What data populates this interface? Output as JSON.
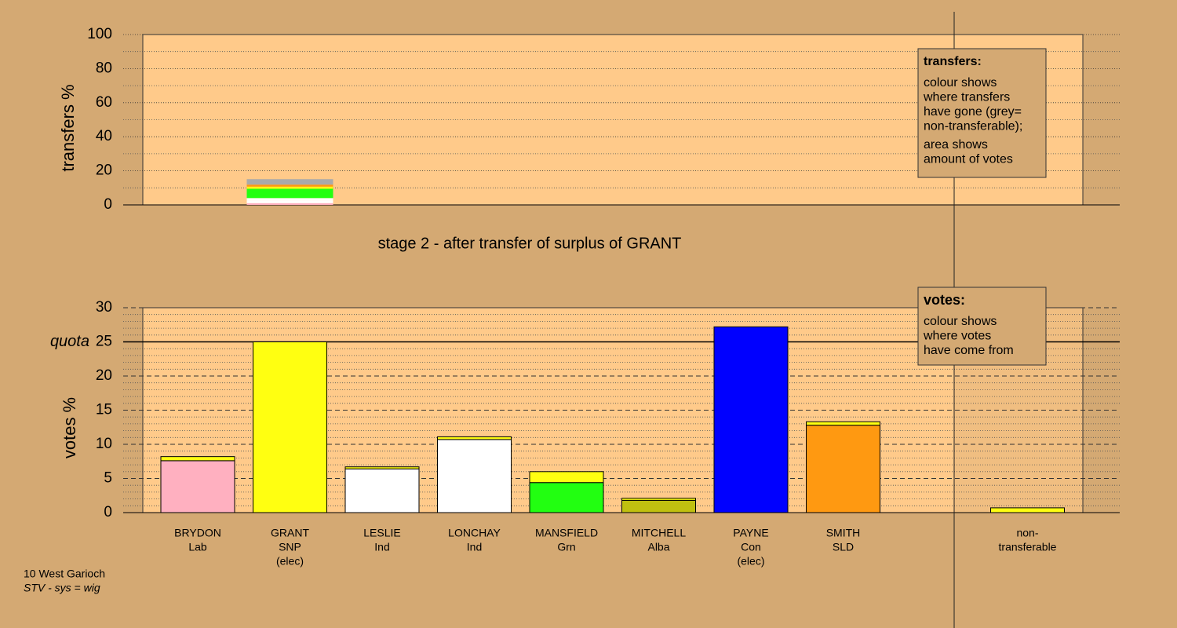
{
  "chart_data": [
    {
      "type": "stacked-bar",
      "ylabel": "transfers %",
      "ylim": [
        0,
        100
      ],
      "yticks": [
        0,
        20,
        40,
        60,
        80,
        100
      ],
      "minor_yticks": [
        10,
        30,
        50,
        70,
        90
      ],
      "segments": [
        {
          "color": "#ffb0c0",
          "value": 1.0
        },
        {
          "color": "#ffffff",
          "value": 1.5
        },
        {
          "color": "#ffffff",
          "value": 1.5
        },
        {
          "color": "#22ff11",
          "value": 5.5
        },
        {
          "color": "#ffff11",
          "value": 1.2
        },
        {
          "color": "#ff9911",
          "value": 1.2
        },
        {
          "color": "#aaaaaa",
          "value": 3.2
        }
      ],
      "legend": {
        "title": "transfers:",
        "lines": [
          "colour shows",
          "where transfers",
          "have gone (grey=",
          "non-transferable);"
        ],
        "lines2": [
          "area shows",
          "amount of votes"
        ]
      }
    },
    {
      "type": "stacked-bar",
      "title": "stage 2 - after transfer of surplus of GRANT",
      "ylabel": "votes %",
      "ylim": [
        0,
        30
      ],
      "yticks": [
        0,
        5,
        10,
        15,
        20,
        25,
        30
      ],
      "minor_yticks": [
        1,
        2,
        3,
        4,
        6,
        7,
        8,
        9,
        11,
        12,
        13,
        14,
        16,
        17,
        18,
        19,
        21,
        22,
        23,
        24,
        26,
        27,
        28,
        29
      ],
      "quota": 25,
      "quota_label": "quota",
      "categories": [
        [
          "BRYDON",
          "Lab"
        ],
        [
          "GRANT",
          "SNP",
          "(elec)"
        ],
        [
          "LESLIE",
          "Ind"
        ],
        [
          "LONCHAY",
          "Ind"
        ],
        [
          "MANSFIELD",
          "Grn"
        ],
        [
          "MITCHELL",
          "Alba"
        ],
        [
          "PAYNE",
          "Con",
          "(elec)"
        ],
        [
          "SMITH",
          "SLD"
        ],
        null,
        [
          "non-",
          "transferable"
        ]
      ],
      "series": [
        {
          "color": [
            "#ffb0c0",
            "#ffff11",
            "#ffffff",
            "#ffffff",
            "#22ff11",
            "#c0c010",
            "#0000ff",
            "#ff9911",
            null,
            null
          ],
          "values": [
            7.6,
            25.0,
            6.4,
            10.7,
            4.4,
            1.8,
            27.2,
            12.8,
            null,
            null
          ]
        },
        {
          "color": "#ffff11",
          "values": [
            0.6,
            null,
            0.3,
            0.4,
            1.6,
            0.3,
            null,
            0.5,
            null,
            0.7
          ]
        }
      ],
      "legend": {
        "title": "votes:",
        "lines": [
          "colour shows",
          "where votes",
          "have come from"
        ]
      },
      "footer": [
        "10 West Garioch",
        "STV - sys = wig"
      ]
    }
  ]
}
